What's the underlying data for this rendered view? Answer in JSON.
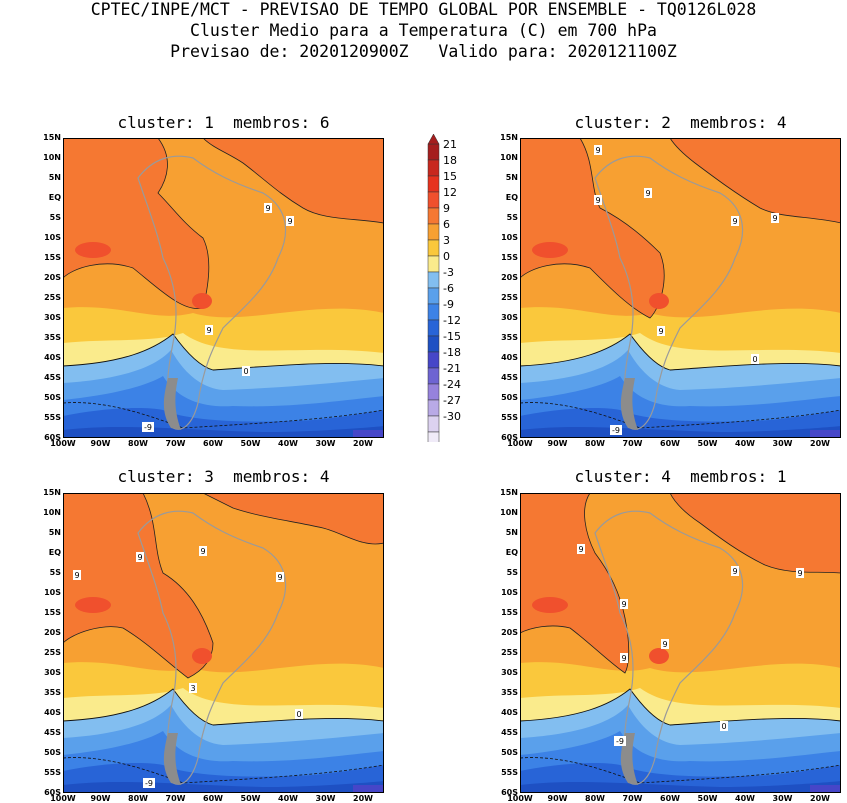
{
  "header": {
    "line1": "CPTEC/INPE/MCT - PREVISAO DE TEMPO GLOBAL POR ENSEMBLE - TQ0126L028",
    "line2": "Cluster Medio para a Temperatura (C) em 700 hPa",
    "line3": "Previsao de: 2020120900Z   Valido para: 2020121100Z"
  },
  "panels": [
    {
      "title": "cluster: 1  membros: 6",
      "contour_labels": [
        "9",
        "9",
        "9",
        "0",
        "-9"
      ]
    },
    {
      "title": "cluster: 2  membros: 4",
      "contour_labels": [
        "9",
        "9",
        "9",
        "9",
        "9",
        "9",
        "0",
        "-9"
      ]
    },
    {
      "title": "cluster: 3  membros: 4",
      "contour_labels": [
        "9",
        "9",
        "9",
        "9",
        "3",
        "0",
        "-9"
      ]
    },
    {
      "title": "cluster: 4  membros: 1",
      "contour_labels": [
        "9",
        "9",
        "9",
        "9",
        "9",
        "9",
        "0",
        "-9"
      ]
    }
  ],
  "lat_ticks": [
    "15N",
    "10N",
    "5N",
    "EQ",
    "5S",
    "10S",
    "15S",
    "20S",
    "25S",
    "30S",
    "35S",
    "40S",
    "45S",
    "50S",
    "55S",
    "60S"
  ],
  "lon_ticks": [
    "100W",
    "90W",
    "80W",
    "70W",
    "60W",
    "50W",
    "40W",
    "30W",
    "20W"
  ],
  "colorbar": {
    "labels": [
      "21",
      "18",
      "15",
      "12",
      "9",
      "6",
      "3",
      "0",
      "-3",
      "-6",
      "-9",
      "-12",
      "-15",
      "-18",
      "-21",
      "-24",
      "-27",
      "-30"
    ],
    "colors": [
      "#a51e1e",
      "#c8281e",
      "#e6321e",
      "#f0502d",
      "#f57832",
      "#f7a032",
      "#fac83c",
      "#faeb8c",
      "#82bef0",
      "#5aa0eb",
      "#3c82e6",
      "#2864d7",
      "#1e50c3",
      "#4646c8",
      "#6e64d2",
      "#9682dc",
      "#b9aae6",
      "#dcd2f0",
      "#f0ebf8"
    ]
  }
}
